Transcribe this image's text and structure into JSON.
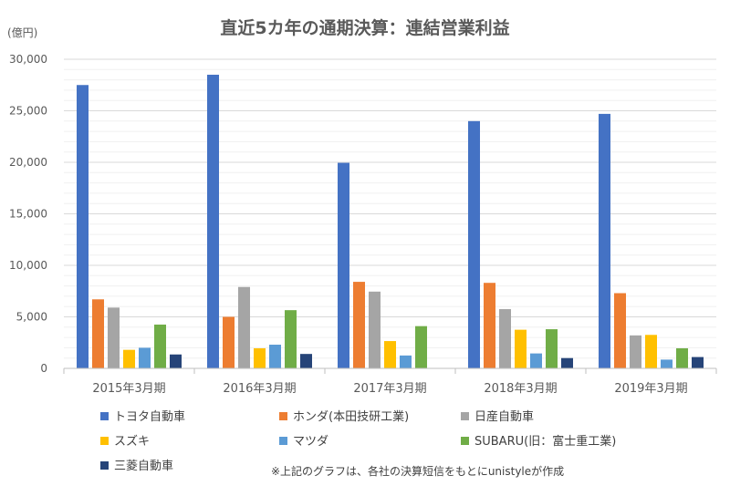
{
  "chart_data": {
    "type": "bar",
    "title": "直近5カ年の通期決算：連結営業利益",
    "unit_label": "(億円)",
    "categories": [
      "2015年3月期",
      "2016年3月期",
      "2017年3月期",
      "2018年3月期",
      "2019年3月期"
    ],
    "ylim": [
      0,
      30000
    ],
    "yticks": [
      "0",
      "5,000",
      "10,000",
      "15,000",
      "20,000",
      "25,000",
      "30,000"
    ],
    "grid": true,
    "legend_position": "bottom",
    "series": [
      {
        "name": "トヨタ自動車",
        "color": "#4472C4",
        "values": [
          27500,
          28500,
          19950,
          24000,
          24700
        ]
      },
      {
        "name": "ホンダ(本田技研工業)",
        "color": "#ED7D31",
        "values": [
          6700,
          5000,
          8400,
          8300,
          7300
        ]
      },
      {
        "name": "日産自動車",
        "color": "#A5A5A5",
        "values": [
          5900,
          7900,
          7450,
          5750,
          3200
        ]
      },
      {
        "name": "スズキ",
        "color": "#FFC000",
        "values": [
          1800,
          1950,
          2650,
          3750,
          3250
        ]
      },
      {
        "name": "マツダ",
        "color": "#5B9BD5",
        "values": [
          2000,
          2300,
          1250,
          1450,
          850
        ]
      },
      {
        "name": "SUBARU(旧：富士重工業)",
        "color": "#70AD47",
        "values": [
          4250,
          5650,
          4100,
          3800,
          1950
        ]
      },
      {
        "name": "三菱自動車",
        "color": "#264478",
        "values": [
          1350,
          1400,
          0,
          1000,
          1100
        ]
      }
    ],
    "note": "※上記のグラフは、各社の決算短信をもとにunistyleが作成"
  }
}
